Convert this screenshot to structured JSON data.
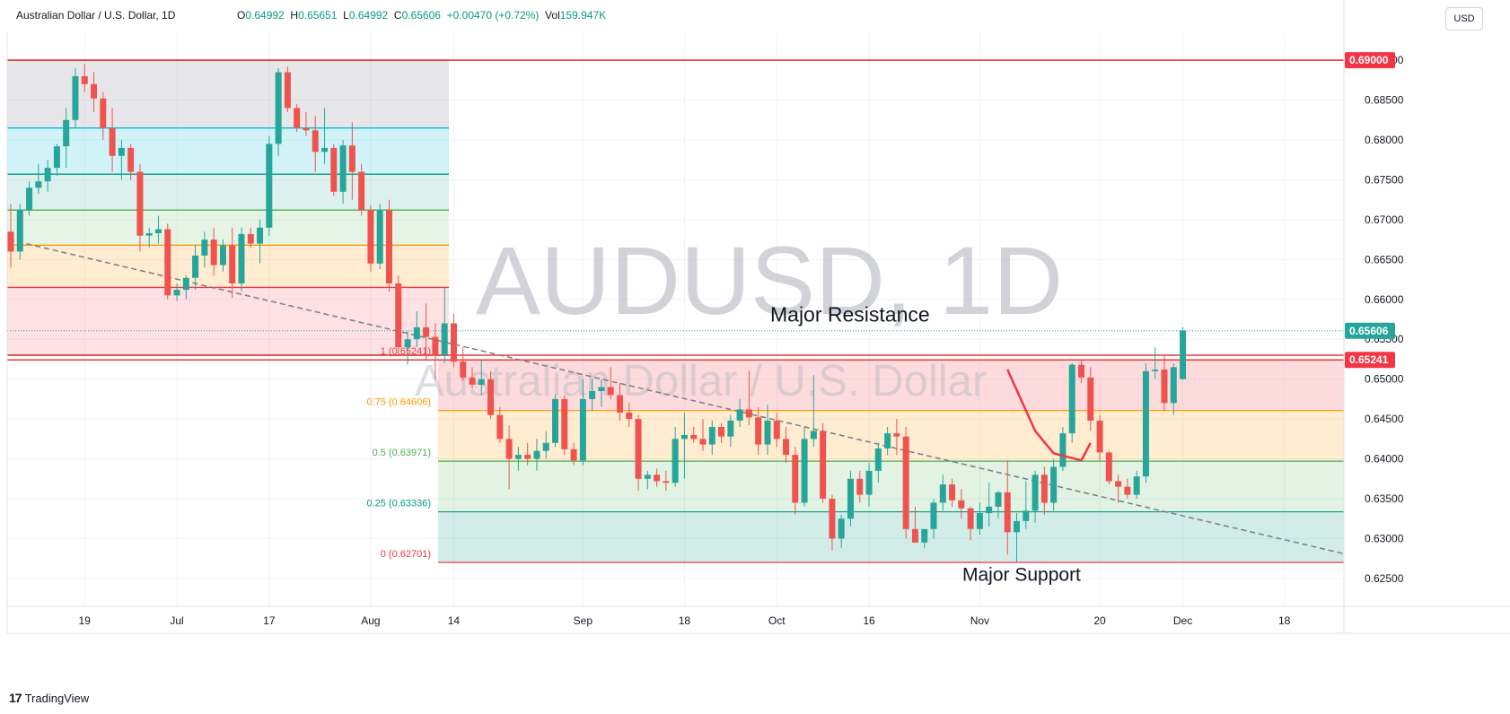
{
  "header": {
    "symbol": "Australian Dollar / U.S. Dollar, 1D",
    "open_key": "O",
    "open": "0.64992",
    "high_key": "H",
    "high": "0.65651",
    "low_key": "L",
    "low": "0.64992",
    "close_key": "C",
    "close": "0.65606",
    "change": "+0.00470 (+0.72%)",
    "vol_key": "Vol",
    "vol": "159.947K",
    "currency": "USD"
  },
  "watermark": {
    "main": "AUDUSD, 1D",
    "sub": "Australian Dollar / U.S. Dollar"
  },
  "footer": {
    "logo_mark": "17",
    "brand": "TradingView"
  },
  "colors": {
    "up": "#26a69a",
    "down": "#ef5350",
    "resistance": "#e53935",
    "grid": "#f0f3fa"
  },
  "chart_data": {
    "type": "candlestick",
    "symbol": "AUDUSD",
    "interval": "1D",
    "y_range": [
      0.6215,
      0.6935
    ],
    "y_ticks": [
      0.625,
      0.63,
      0.635,
      0.64,
      0.645,
      0.65,
      0.655,
      0.66,
      0.665,
      0.67,
      0.675,
      0.68,
      0.685,
      0.69
    ],
    "y_tick_labels": [
      "0.62500",
      "0.63000",
      "0.63500",
      "0.64000",
      "0.64500",
      "0.65000",
      "0.65500",
      "0.66000",
      "0.66500",
      "0.67000",
      "0.67500",
      "0.68000",
      "0.68500",
      "0.69000"
    ],
    "x_range": [
      0,
      149
    ],
    "x_ticks": [
      {
        "label": "19",
        "i": 8
      },
      {
        "label": "Jul",
        "i": 18
      },
      {
        "label": "17",
        "i": 28
      },
      {
        "label": "Aug",
        "i": 39
      },
      {
        "label": "14",
        "i": 48
      },
      {
        "label": "Sep",
        "i": 62
      },
      {
        "label": "18",
        "i": 73
      },
      {
        "label": "Oct",
        "i": 83
      },
      {
        "label": "16",
        "i": 93
      },
      {
        "label": "Nov",
        "i": 105
      },
      {
        "label": "20",
        "i": 118
      },
      {
        "label": "Dec",
        "i": 127
      },
      {
        "label": "18",
        "i": 138
      }
    ],
    "candles": [
      [
        0.6685,
        0.672,
        0.664,
        0.666
      ],
      [
        0.666,
        0.672,
        0.665,
        0.6712
      ],
      [
        0.6712,
        0.6748,
        0.6705,
        0.674
      ],
      [
        0.674,
        0.677,
        0.6732,
        0.6748
      ],
      [
        0.6748,
        0.6775,
        0.6735,
        0.6765
      ],
      [
        0.6765,
        0.6795,
        0.6755,
        0.6792
      ],
      [
        0.6792,
        0.684,
        0.6765,
        0.6825
      ],
      [
        0.6825,
        0.689,
        0.6815,
        0.688
      ],
      [
        0.688,
        0.6895,
        0.686,
        0.687
      ],
      [
        0.687,
        0.6885,
        0.6835,
        0.6852
      ],
      [
        0.6852,
        0.686,
        0.68,
        0.6815
      ],
      [
        0.6815,
        0.684,
        0.676,
        0.678
      ],
      [
        0.678,
        0.68,
        0.675,
        0.679
      ],
      [
        0.679,
        0.6795,
        0.675,
        0.676
      ],
      [
        0.676,
        0.677,
        0.666,
        0.668
      ],
      [
        0.668,
        0.669,
        0.6665,
        0.6683
      ],
      [
        0.6683,
        0.6705,
        0.667,
        0.6688
      ],
      [
        0.6688,
        0.6695,
        0.66,
        0.6605
      ],
      [
        0.6605,
        0.662,
        0.6598,
        0.6612
      ],
      [
        0.6612,
        0.663,
        0.66,
        0.6627
      ],
      [
        0.6627,
        0.6668,
        0.6612,
        0.6655
      ],
      [
        0.6655,
        0.6685,
        0.664,
        0.6675
      ],
      [
        0.6675,
        0.669,
        0.663,
        0.6643
      ],
      [
        0.6643,
        0.6675,
        0.6635,
        0.6668
      ],
      [
        0.6668,
        0.669,
        0.6602,
        0.662
      ],
      [
        0.662,
        0.669,
        0.661,
        0.6682
      ],
      [
        0.6682,
        0.669,
        0.6665,
        0.667
      ],
      [
        0.667,
        0.67,
        0.6645,
        0.669
      ],
      [
        0.669,
        0.6805,
        0.668,
        0.6795
      ],
      [
        0.6795,
        0.689,
        0.678,
        0.6885
      ],
      [
        0.6885,
        0.6892,
        0.6835,
        0.684
      ],
      [
        0.684,
        0.6845,
        0.681,
        0.6815
      ],
      [
        0.6815,
        0.6835,
        0.6805,
        0.6812
      ],
      [
        0.6812,
        0.683,
        0.676,
        0.6785
      ],
      [
        0.6785,
        0.684,
        0.677,
        0.679
      ],
      [
        0.679,
        0.6795,
        0.673,
        0.6735
      ],
      [
        0.6735,
        0.68,
        0.672,
        0.6793
      ],
      [
        0.6793,
        0.6822,
        0.6725,
        0.676
      ],
      [
        0.676,
        0.677,
        0.6705,
        0.6712
      ],
      [
        0.6712,
        0.6718,
        0.6635,
        0.6645
      ],
      [
        0.6645,
        0.672,
        0.6638,
        0.6712
      ],
      [
        0.6712,
        0.6725,
        0.661,
        0.662
      ],
      [
        0.662,
        0.663,
        0.653,
        0.654
      ],
      [
        0.654,
        0.656,
        0.6518,
        0.655
      ],
      [
        0.655,
        0.6585,
        0.654,
        0.6565
      ],
      [
        0.6565,
        0.6595,
        0.6525,
        0.6553
      ],
      [
        0.6553,
        0.657,
        0.65,
        0.653
      ],
      [
        0.653,
        0.6615,
        0.652,
        0.657
      ],
      [
        0.657,
        0.6582,
        0.6515,
        0.6522
      ],
      [
        0.6522,
        0.654,
        0.6498,
        0.6502
      ],
      [
        0.6502,
        0.6515,
        0.6488,
        0.6493
      ],
      [
        0.6493,
        0.6525,
        0.648,
        0.65
      ],
      [
        0.65,
        0.651,
        0.645,
        0.6455
      ],
      [
        0.6455,
        0.6465,
        0.642,
        0.6425
      ],
      [
        0.6425,
        0.6442,
        0.6362,
        0.64
      ],
      [
        0.64,
        0.6415,
        0.6385,
        0.6405
      ],
      [
        0.6405,
        0.642,
        0.6392,
        0.64
      ],
      [
        0.64,
        0.6425,
        0.6385,
        0.641
      ],
      [
        0.641,
        0.6435,
        0.64,
        0.642
      ],
      [
        0.642,
        0.648,
        0.6415,
        0.6475
      ],
      [
        0.6475,
        0.648,
        0.6405,
        0.6412
      ],
      [
        0.6412,
        0.642,
        0.6392,
        0.6398
      ],
      [
        0.6398,
        0.65,
        0.6392,
        0.6475
      ],
      [
        0.6475,
        0.65,
        0.646,
        0.6485
      ],
      [
        0.6485,
        0.65,
        0.6465,
        0.649
      ],
      [
        0.649,
        0.6515,
        0.6475,
        0.648
      ],
      [
        0.648,
        0.6495,
        0.6448,
        0.6458
      ],
      [
        0.6458,
        0.647,
        0.644,
        0.645
      ],
      [
        0.645,
        0.6455,
        0.636,
        0.6375
      ],
      [
        0.6375,
        0.6385,
        0.6362,
        0.638
      ],
      [
        0.638,
        0.6388,
        0.6365,
        0.6372
      ],
      [
        0.6372,
        0.6385,
        0.636,
        0.637
      ],
      [
        0.637,
        0.644,
        0.6365,
        0.6425
      ],
      [
        0.6425,
        0.6458,
        0.6375,
        0.643
      ],
      [
        0.643,
        0.644,
        0.642,
        0.6425
      ],
      [
        0.6425,
        0.645,
        0.641,
        0.6418
      ],
      [
        0.6418,
        0.6448,
        0.6405,
        0.644
      ],
      [
        0.644,
        0.6445,
        0.642,
        0.6428
      ],
      [
        0.6428,
        0.6455,
        0.6415,
        0.6448
      ],
      [
        0.6448,
        0.6475,
        0.644,
        0.6462
      ],
      [
        0.6462,
        0.651,
        0.6442,
        0.6452
      ],
      [
        0.6452,
        0.6465,
        0.6405,
        0.6418
      ],
      [
        0.6418,
        0.6468,
        0.6405,
        0.6448
      ],
      [
        0.6448,
        0.6458,
        0.6415,
        0.6425
      ],
      [
        0.6425,
        0.644,
        0.6395,
        0.6405
      ],
      [
        0.6405,
        0.6415,
        0.633,
        0.6345
      ],
      [
        0.6345,
        0.644,
        0.634,
        0.6425
      ],
      [
        0.6425,
        0.6505,
        0.6415,
        0.6435
      ],
      [
        0.6435,
        0.6445,
        0.6345,
        0.635
      ],
      [
        0.635,
        0.6355,
        0.6285,
        0.63
      ],
      [
        0.63,
        0.633,
        0.6288,
        0.6325
      ],
      [
        0.6325,
        0.6385,
        0.6315,
        0.6375
      ],
      [
        0.6375,
        0.6385,
        0.6345,
        0.6355
      ],
      [
        0.6355,
        0.6395,
        0.634,
        0.6385
      ],
      [
        0.6385,
        0.642,
        0.637,
        0.6413
      ],
      [
        0.6413,
        0.644,
        0.6405,
        0.6432
      ],
      [
        0.6432,
        0.645,
        0.6405,
        0.6428
      ],
      [
        0.6428,
        0.644,
        0.63,
        0.6312
      ],
      [
        0.6312,
        0.634,
        0.6295,
        0.6295
      ],
      [
        0.6295,
        0.6305,
        0.6288,
        0.6312
      ],
      [
        0.6312,
        0.635,
        0.63,
        0.6345
      ],
      [
        0.6345,
        0.638,
        0.6335,
        0.6368
      ],
      [
        0.6368,
        0.6375,
        0.634,
        0.6348
      ],
      [
        0.6348,
        0.6362,
        0.6325,
        0.6338
      ],
      [
        0.6338,
        0.634,
        0.6298,
        0.6312
      ],
      [
        0.6312,
        0.6345,
        0.6305,
        0.6332
      ],
      [
        0.6332,
        0.637,
        0.6315,
        0.634
      ],
      [
        0.634,
        0.636,
        0.6325,
        0.6358
      ],
      [
        0.6358,
        0.6398,
        0.628,
        0.6308
      ],
      [
        0.6308,
        0.6332,
        0.627,
        0.6322
      ],
      [
        0.6322,
        0.6372,
        0.6312,
        0.6335
      ],
      [
        0.6335,
        0.6385,
        0.632,
        0.638
      ],
      [
        0.638,
        0.639,
        0.633,
        0.6345
      ],
      [
        0.6345,
        0.64,
        0.6335,
        0.639
      ],
      [
        0.639,
        0.644,
        0.6385,
        0.6432
      ],
      [
        0.6432,
        0.652,
        0.642,
        0.6518
      ],
      [
        0.6518,
        0.6525,
        0.6495,
        0.6502
      ],
      [
        0.6502,
        0.6515,
        0.6435,
        0.6448
      ],
      [
        0.6448,
        0.6455,
        0.6398,
        0.6408
      ],
      [
        0.6408,
        0.641,
        0.6368,
        0.6372
      ],
      [
        0.6372,
        0.638,
        0.6345,
        0.6365
      ],
      [
        0.6365,
        0.6375,
        0.635,
        0.6355
      ],
      [
        0.6355,
        0.6385,
        0.635,
        0.6378
      ],
      [
        0.6378,
        0.652,
        0.637,
        0.651
      ],
      [
        0.651,
        0.654,
        0.65,
        0.6512
      ],
      [
        0.6512,
        0.653,
        0.646,
        0.647
      ],
      [
        0.647,
        0.652,
        0.6455,
        0.6515
      ],
      [
        0.65,
        0.6565,
        0.6499,
        0.6561
      ]
    ],
    "fib_levels": [
      {
        "ratio": 1,
        "label": "1 (0.65241)",
        "value": 0.65241
      },
      {
        "ratio": 0.75,
        "label": "0.75 (0.64606)",
        "value": 0.64606
      },
      {
        "ratio": 0.5,
        "label": "0.5 (0.63971)",
        "value": 0.63971
      },
      {
        "ratio": 0.25,
        "label": "0.25 (0.63336)",
        "value": 0.63336
      },
      {
        "ratio": 0,
        "label": "0 (0.62701)",
        "value": 0.62701
      }
    ],
    "horizontal_lines": [
      {
        "value": 0.69,
        "label": "0.69000"
      },
      {
        "value": 0.65241,
        "label": "0.65241"
      }
    ],
    "last_price": {
      "value": 0.65606,
      "label": "0.65606"
    },
    "annotations": [
      {
        "text": "Major Resistance"
      },
      {
        "text": "Major Support"
      }
    ]
  }
}
